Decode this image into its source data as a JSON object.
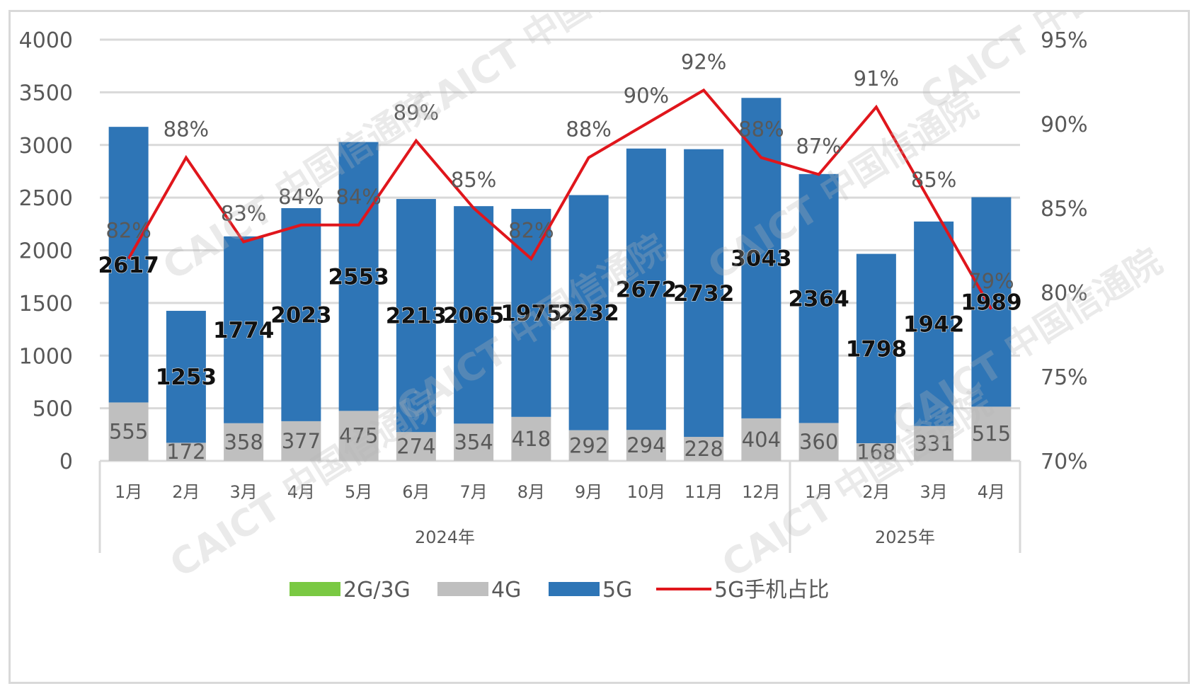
{
  "chart_data": {
    "type": "bar",
    "stacked": true,
    "categories": [
      "1月",
      "2月",
      "3月",
      "4月",
      "5月",
      "6月",
      "7月",
      "8月",
      "9月",
      "10月",
      "11月",
      "12月",
      "1月",
      "2月",
      "3月",
      "4月"
    ],
    "groups": [
      {
        "label": "2024年",
        "start": 0,
        "end": 11
      },
      {
        "label": "2025年",
        "start": 12,
        "end": 15
      }
    ],
    "series": [
      {
        "name": "2G/3G",
        "color": "#7ac943",
        "values": [
          0,
          0,
          0,
          0,
          0,
          0,
          0,
          0,
          0,
          0,
          0,
          0,
          0,
          0,
          0,
          0
        ]
      },
      {
        "name": "4G",
        "color": "#bfbfbf",
        "values": [
          555,
          172,
          358,
          377,
          475,
          274,
          354,
          418,
          292,
          294,
          228,
          404,
          360,
          168,
          331,
          515
        ]
      },
      {
        "name": "5G",
        "color": "#2e75b6",
        "values": [
          2617,
          1253,
          1774,
          2023,
          2553,
          2213,
          2065,
          1975,
          2232,
          2672,
          2732,
          3043,
          2364,
          1798,
          1942,
          1989
        ]
      }
    ],
    "line_series": {
      "name": "5G手机占比",
      "color": "#e0161c",
      "axis": "right",
      "values": [
        82,
        88,
        83,
        84,
        84,
        89,
        85,
        82,
        88,
        90,
        92,
        88,
        87,
        91,
        85,
        79
      ],
      "labels": [
        "82%",
        "88%",
        "83%",
        "84%",
        "84%",
        "89%",
        "85%",
        "82%",
        "88%",
        "90%",
        "92%",
        "88%",
        "87%",
        "91%",
        "85%",
        "79%"
      ]
    },
    "y_left": {
      "min": 0,
      "max": 4000,
      "ticks": [
        "0",
        "500",
        "1000",
        "1500",
        "2000",
        "2500",
        "3000",
        "3500",
        "4000"
      ]
    },
    "y_right": {
      "min": 70,
      "max": 95,
      "ticks": [
        "70%",
        "75%",
        "80%",
        "85%",
        "90%",
        "95%"
      ]
    },
    "legend": [
      "2G/3G",
      "4G",
      "5G",
      "5G手机占比"
    ],
    "watermark": [
      "CAICT",
      "中国信通院"
    ]
  }
}
